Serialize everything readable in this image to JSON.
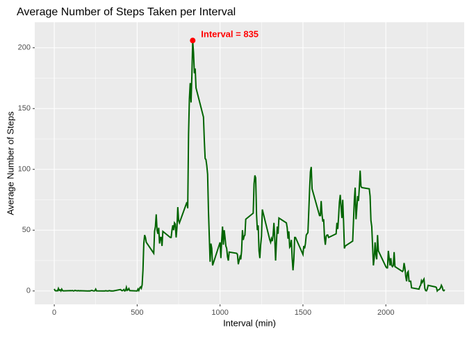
{
  "chart_data": {
    "type": "line",
    "title": "Average Number of Steps Taken per Interval",
    "x_label": "Interval (min)",
    "y_label": "Average Number of Steps",
    "annotation": "Interval = 835",
    "color": "#006400",
    "max_point": {
      "x": 835,
      "y": 206,
      "color": "#ff0000"
    },
    "x": [
      0,
      5,
      10,
      15,
      20,
      25,
      30,
      35,
      40,
      45,
      50,
      55,
      100,
      105,
      110,
      115,
      120,
      125,
      130,
      135,
      140,
      145,
      150,
      155,
      200,
      205,
      210,
      215,
      220,
      225,
      230,
      235,
      240,
      245,
      250,
      255,
      300,
      305,
      310,
      315,
      320,
      325,
      330,
      335,
      340,
      345,
      350,
      355,
      400,
      405,
      410,
      415,
      420,
      425,
      430,
      435,
      440,
      445,
      450,
      455,
      500,
      505,
      510,
      515,
      520,
      525,
      530,
      535,
      540,
      545,
      550,
      555,
      600,
      605,
      610,
      615,
      620,
      625,
      630,
      635,
      640,
      645,
      650,
      655,
      700,
      705,
      710,
      715,
      720,
      725,
      730,
      735,
      740,
      745,
      750,
      755,
      800,
      805,
      810,
      815,
      820,
      825,
      830,
      835,
      840,
      845,
      850,
      855,
      900,
      905,
      910,
      915,
      920,
      925,
      930,
      935,
      940,
      945,
      950,
      955,
      1000,
      1005,
      1010,
      1015,
      1020,
      1025,
      1030,
      1035,
      1040,
      1045,
      1050,
      1055,
      1100,
      1105,
      1110,
      1115,
      1120,
      1125,
      1130,
      1135,
      1140,
      1145,
      1150,
      1155,
      1200,
      1205,
      1210,
      1215,
      1220,
      1225,
      1230,
      1235,
      1240,
      1245,
      1250,
      1255,
      1300,
      1305,
      1310,
      1315,
      1320,
      1325,
      1330,
      1335,
      1340,
      1345,
      1350,
      1355,
      1400,
      1405,
      1410,
      1415,
      1420,
      1425,
      1430,
      1435,
      1440,
      1445,
      1450,
      1455,
      1500,
      1505,
      1510,
      1515,
      1520,
      1525,
      1530,
      1535,
      1540,
      1545,
      1550,
      1555,
      1600,
      1605,
      1610,
      1615,
      1620,
      1625,
      1630,
      1635,
      1640,
      1645,
      1650,
      1655,
      1700,
      1705,
      1710,
      1715,
      1720,
      1725,
      1730,
      1735,
      1740,
      1745,
      1750,
      1755,
      1800,
      1805,
      1810,
      1815,
      1820,
      1825,
      1830,
      1835,
      1840,
      1845,
      1850,
      1855,
      1900,
      1905,
      1910,
      1915,
      1920,
      1925,
      1930,
      1935,
      1940,
      1945,
      1950,
      1955,
      2000,
      2005,
      2010,
      2015,
      2020,
      2025,
      2030,
      2035,
      2040,
      2045,
      2050,
      2055,
      2100,
      2105,
      2110,
      2115,
      2120,
      2125,
      2130,
      2135,
      2140,
      2145,
      2150,
      2155,
      2200,
      2205,
      2210,
      2215,
      2220,
      2225,
      2230,
      2235,
      2240,
      2245,
      2250,
      2255,
      2300,
      2305,
      2310,
      2315,
      2320,
      2325,
      2330,
      2335,
      2340,
      2345,
      2350,
      2355
    ],
    "values": [
      1.7,
      0.3,
      0.1,
      0.2,
      0.1,
      2.1,
      0.5,
      0.9,
      0,
      1.5,
      0.3,
      0.1,
      0.3,
      0.2,
      0.4,
      0,
      0.1,
      0.5,
      0.3,
      0.2,
      0.1,
      0.3,
      0.1,
      0.2,
      0,
      0,
      0.1,
      0,
      0.2,
      0.5,
      0.3,
      0.1,
      0,
      0.2,
      1.5,
      0.1,
      0,
      0,
      0.2,
      0.1,
      0,
      0,
      0.2,
      0.3,
      0,
      0.1,
      0,
      0,
      1.2,
      0.5,
      0.2,
      0.6,
      1.2,
      0,
      0.4,
      3,
      0.5,
      1,
      2,
      0.3,
      0,
      1.6,
      0.4,
      2.4,
      3.3,
      2.2,
      5,
      17,
      39,
      46,
      44,
      40,
      31,
      49,
      53,
      63,
      50,
      47,
      52,
      39,
      44,
      44,
      37,
      49,
      44,
      44,
      50,
      54,
      50,
      56,
      55,
      44,
      52,
      69,
      58,
      56,
      73,
      68,
      129,
      158,
      171,
      155,
      177,
      206,
      196,
      179,
      183,
      167,
      143,
      124,
      109,
      108,
      103,
      96,
      66,
      45,
      24,
      39,
      35,
      21,
      40,
      27,
      42,
      53,
      38,
      50,
      44,
      37,
      35,
      28,
      25,
      32,
      31,
      30,
      22,
      25,
      28,
      26,
      33,
      50,
      42,
      45,
      46,
      59,
      64,
      88,
      95,
      93,
      63,
      50,
      54,
      33,
      27,
      38,
      45,
      67,
      42,
      40,
      43,
      41,
      46,
      56,
      43,
      25,
      40,
      53,
      47,
      60,
      56,
      52,
      43,
      49,
      36,
      37,
      42,
      27,
      17,
      26,
      44,
      44,
      30,
      37,
      35,
      39,
      46,
      47,
      48,
      65,
      83,
      98,
      102,
      84,
      62,
      62,
      74,
      63,
      57,
      59,
      44,
      38,
      45,
      46,
      46,
      44,
      47,
      56,
      51,
      61,
      73,
      79,
      69,
      60,
      75,
      57,
      35,
      37,
      41,
      58,
      75,
      85,
      59,
      68,
      78,
      74,
      85,
      99,
      86,
      85,
      84,
      78,
      58,
      53,
      37,
      21,
      27,
      40,
      30,
      26,
      46,
      33,
      20,
      19,
      19,
      33,
      27,
      21,
      27,
      21,
      20,
      21,
      32,
      20,
      16,
      17,
      23,
      19,
      12,
      8,
      15,
      16,
      8,
      8,
      8,
      2.6,
      1.5,
      3.7,
      4.8,
      8.5,
      7.1,
      8.7,
      9.8,
      2.2,
      0.3,
      0.1,
      1.6,
      4.6,
      3.3,
      2.8,
      0,
      0.8,
      1,
      1.6,
      2.6,
      4.7,
      3.3,
      0.6,
      0.2,
      1.1
    ],
    "xlim": [
      -117.75,
      2472.75
    ],
    "ylim": [
      -11,
      221
    ],
    "xticks": [
      0,
      500,
      1000,
      1500,
      2000
    ],
    "yticks": [
      0,
      50,
      100,
      150,
      200
    ],
    "x_minor_ticks": [
      250,
      750,
      1250,
      1750,
      2250
    ],
    "y_minor_ticks": [
      25,
      75,
      125,
      175
    ],
    "grid": true
  }
}
